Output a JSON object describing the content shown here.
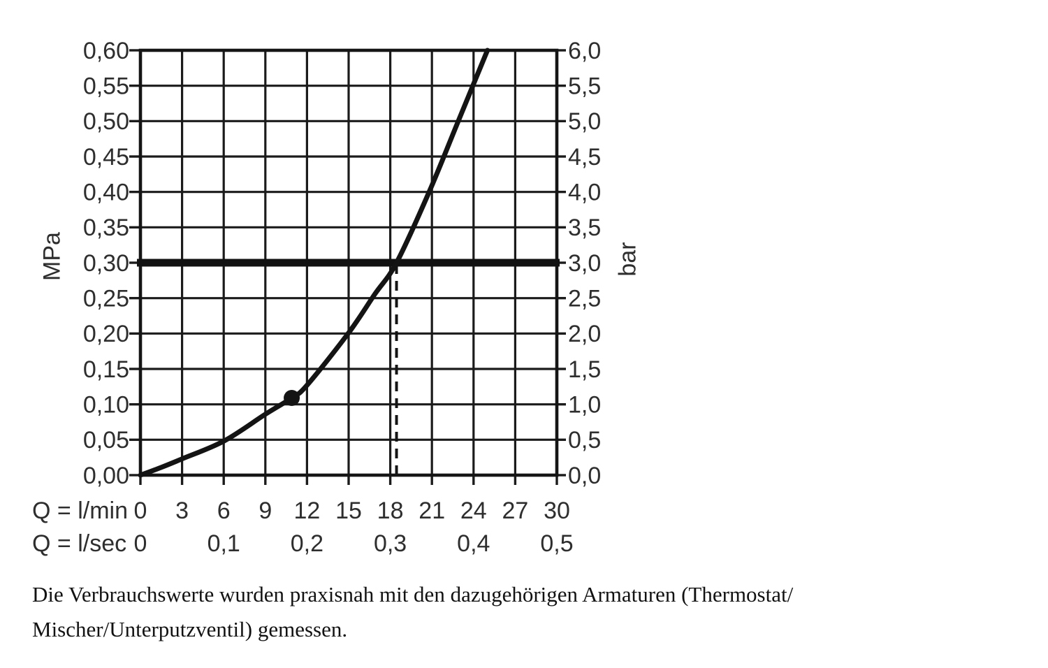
{
  "caption": {
    "line1": "Die Verbrauchswerte wurden praxisnah mit den dazugehörigen Armaturen (Thermostat/",
    "line2": "Mischer/Unterputzventil) gemessen."
  },
  "chart_data": {
    "type": "line",
    "title": "",
    "grid": true,
    "legend": "none",
    "y_axis_left": {
      "unit": "MPa",
      "min": 0,
      "max": 0.6,
      "step": 0.05,
      "tick_labels": [
        "0,60",
        "0,55",
        "0,50",
        "0,45",
        "0,40",
        "0,35",
        "0,30",
        "0,25",
        "0,20",
        "0,15",
        "0,10",
        "0,05",
        "0,00"
      ]
    },
    "y_axis_right": {
      "unit": "bar",
      "min": 0,
      "max": 6,
      "step": 0.5,
      "tick_labels": [
        "6,0",
        "5,5",
        "5,0",
        "4,5",
        "4,0",
        "3,5",
        "3,0",
        "2,5",
        "2,0",
        "1,5",
        "1,0",
        "0,5",
        "0,0"
      ]
    },
    "x_axis_lmin": {
      "label": "Q = l/min",
      "min": 0,
      "max": 30,
      "step": 3,
      "tick_labels": [
        "0",
        "3",
        "6",
        "9",
        "12",
        "15",
        "18",
        "21",
        "24",
        "27",
        "30"
      ]
    },
    "x_axis_lsec": {
      "label": "Q = l/sec",
      "ticks": [
        {
          "value": 0,
          "label": "0"
        },
        {
          "value": 6,
          "label": "0,1"
        },
        {
          "value": 12,
          "label": "0,2"
        },
        {
          "value": 18,
          "label": "0,3"
        },
        {
          "value": 24,
          "label": "0,4"
        },
        {
          "value": 30,
          "label": "0,5"
        }
      ]
    },
    "series": [
      {
        "name": "flow-pressure-curve",
        "points_q_lmin_vs_mpa": [
          [
            0,
            0
          ],
          [
            1.5,
            0.011
          ],
          [
            3,
            0.023
          ],
          [
            6,
            0.048
          ],
          [
            9,
            0.086
          ],
          [
            10.9,
            0.109
          ],
          [
            12,
            0.127
          ],
          [
            15,
            0.201
          ],
          [
            16.9,
            0.256
          ],
          [
            18.45,
            0.3
          ],
          [
            20.8,
            0.4
          ],
          [
            22.9,
            0.5
          ],
          [
            25.0,
            0.6
          ]
        ]
      }
    ],
    "marker_point": {
      "q_lmin": 10.9,
      "p_mpa": 0.109
    },
    "reference_line": {
      "p_mpa": 0.3,
      "p_bar": 3.0
    },
    "guide_line": {
      "q_lmin": 18.45,
      "from_p_mpa": 0,
      "to_p_mpa": 0.3,
      "style": "dashed"
    }
  }
}
